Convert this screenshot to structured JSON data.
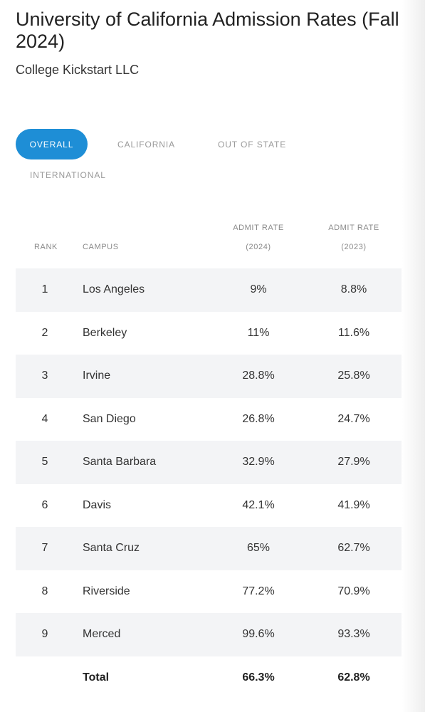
{
  "header": {
    "title": "University of California Admission Rates (Fall 2024)",
    "subtitle": "College Kickstart LLC"
  },
  "tabs": {
    "overall": "OVERALL",
    "california": "CALIFORNIA",
    "out_of_state": "OUT OF STATE",
    "international": "INTERNATIONAL",
    "active": "OVERALL"
  },
  "colors": {
    "accent": "#1e8ed6",
    "row_shade": "#f3f4f6"
  },
  "table": {
    "headers": {
      "rank": "RANK",
      "campus": "CAMPUS",
      "admit_2024_line1": "ADMIT RATE",
      "admit_2024_line2": "(2024)",
      "admit_2023_line1": "ADMIT RATE",
      "admit_2023_line2": "(2023)"
    },
    "rows": [
      {
        "rank": "1",
        "campus": "Los Angeles",
        "rate_2024": "9%",
        "rate_2023": "8.8%"
      },
      {
        "rank": "2",
        "campus": "Berkeley",
        "rate_2024": "11%",
        "rate_2023": "11.6%"
      },
      {
        "rank": "3",
        "campus": "Irvine",
        "rate_2024": "28.8%",
        "rate_2023": "25.8%"
      },
      {
        "rank": "4",
        "campus": "San Diego",
        "rate_2024": "26.8%",
        "rate_2023": "24.7%"
      },
      {
        "rank": "5",
        "campus": "Santa Barbara",
        "rate_2024": "32.9%",
        "rate_2023": "27.9%"
      },
      {
        "rank": "6",
        "campus": "Davis",
        "rate_2024": "42.1%",
        "rate_2023": "41.9%"
      },
      {
        "rank": "7",
        "campus": "Santa Cruz",
        "rate_2024": "65%",
        "rate_2023": "62.7%"
      },
      {
        "rank": "8",
        "campus": "Riverside",
        "rate_2024": "77.2%",
        "rate_2023": "70.9%"
      },
      {
        "rank": "9",
        "campus": "Merced",
        "rate_2024": "99.6%",
        "rate_2023": "93.3%"
      }
    ],
    "total": {
      "label": "Total",
      "rate_2024": "66.3%",
      "rate_2023": "62.8%"
    }
  }
}
